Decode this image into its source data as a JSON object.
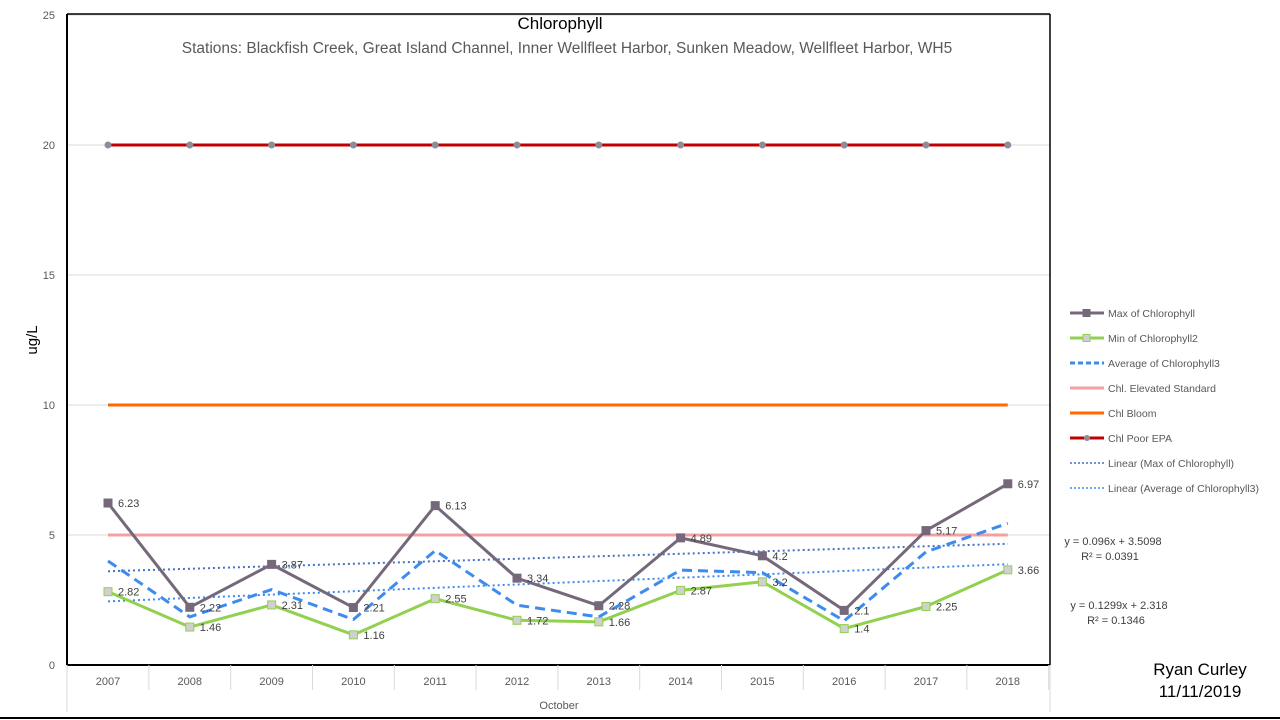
{
  "chart_data": {
    "type": "line",
    "title": "Chlorophyll",
    "subtitle": "Stations: Blackfish Creek, Great Island Channel, Inner Wellfleet Harbor, Sunken Meadow, Wellfleet Harbor, WH5",
    "ylabel": "ug/L",
    "xlabel": "October",
    "ylim": [
      0,
      25
    ],
    "yticks": [
      "0",
      "5",
      "10",
      "15",
      "20",
      "25"
    ],
    "categories": [
      "2007",
      "2008",
      "2009",
      "2010",
      "2011",
      "2012",
      "2013",
      "2014",
      "2015",
      "2016",
      "2017",
      "2018"
    ],
    "series": [
      {
        "name": "Max of Chlorophyll",
        "color": "#75687a",
        "values": [
          6.23,
          2.22,
          3.87,
          2.21,
          6.13,
          3.34,
          2.28,
          4.89,
          4.2,
          2.1,
          5.17,
          6.97
        ],
        "labels": [
          "6.23",
          "2.22",
          "3.87",
          "2.21",
          "6.13",
          "3.34",
          "2.28",
          "4.89",
          "4.2",
          "2.1",
          "5.17",
          "6.97"
        ]
      },
      {
        "name": "Min of Chlorophyll2",
        "color": "#92d050",
        "values": [
          2.82,
          1.46,
          2.31,
          1.16,
          2.55,
          1.72,
          1.66,
          2.87,
          3.2,
          1.4,
          2.25,
          3.66
        ],
        "labels": [
          "2.82",
          "1.46",
          "2.31",
          "1.16",
          "2.55",
          "1.72",
          "1.66",
          "2.87",
          "3.2",
          "1.4",
          "2.25",
          "3.66"
        ]
      },
      {
        "name": "Average of Chlorophyll3",
        "color": "#3d8bef",
        "values": [
          4.0,
          1.85,
          2.9,
          1.75,
          4.4,
          2.3,
          1.85,
          3.65,
          3.55,
          1.7,
          4.35,
          5.45
        ]
      },
      {
        "name": "Chl. Elevated Standard",
        "color": "#f4a0a0",
        "values": [
          5,
          5,
          5,
          5,
          5,
          5,
          5,
          5,
          5,
          5,
          5,
          5
        ]
      },
      {
        "name": "Chl Bloom",
        "color": "#ff6a00",
        "values": [
          10,
          10,
          10,
          10,
          10,
          10,
          10,
          10,
          10,
          10,
          10,
          10
        ]
      },
      {
        "name": "Chl Poor EPA",
        "color": "#c00000",
        "values": [
          20,
          20,
          20,
          20,
          20,
          20,
          20,
          20,
          20,
          20,
          20,
          20
        ]
      }
    ],
    "trendlines": [
      {
        "name": "Linear (Max of Chlorophyll)",
        "color": "#4472c4",
        "slope": 0.096,
        "intercept": 3.5098,
        "equation": "y = 0.096x + 3.5098",
        "r2": "R² = 0.0391"
      },
      {
        "name": "Linear (Average of Chlorophyll3)",
        "color": "#3d8bef",
        "slope": 0.1299,
        "intercept": 2.318,
        "equation": "y = 0.1299x + 2.318",
        "r2": "R² = 0.1346"
      }
    ],
    "legend_position": "right"
  },
  "footer": {
    "author": "Ryan Curley",
    "date": "11/11/2019"
  }
}
